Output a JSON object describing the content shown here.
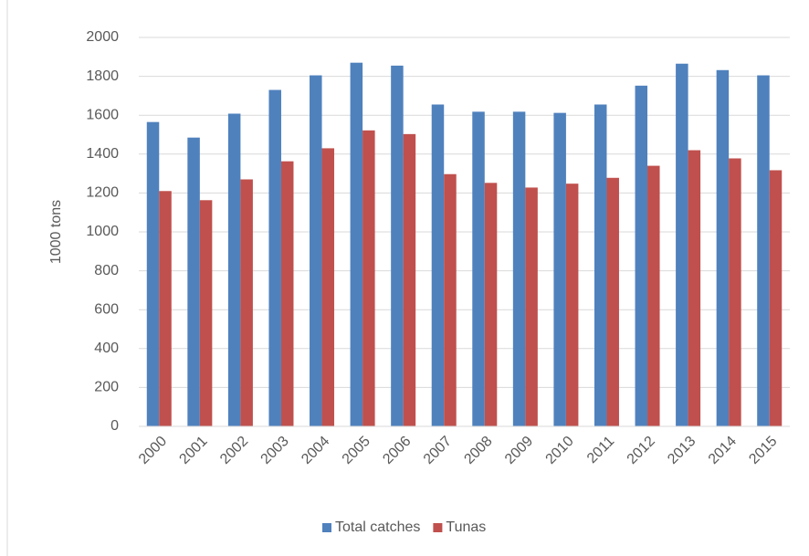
{
  "chart_data": {
    "type": "bar",
    "y_label": "1000 tons",
    "categories": [
      "2000",
      "2001",
      "2002",
      "2003",
      "2004",
      "2005",
      "2006",
      "2007",
      "2008",
      "2009",
      "2010",
      "2011",
      "2012",
      "2013",
      "2014",
      "2015"
    ],
    "series": [
      {
        "name": "Total catches",
        "color": "#4f81bd",
        "values": [
          1565,
          1485,
          1608,
          1730,
          1805,
          1870,
          1855,
          1655,
          1618,
          1618,
          1612,
          1655,
          1752,
          1865,
          1832,
          1805
        ]
      },
      {
        "name": "Tunas",
        "color": "#c0504d",
        "values": [
          1210,
          1163,
          1270,
          1363,
          1430,
          1522,
          1503,
          1297,
          1252,
          1228,
          1248,
          1278,
          1340,
          1420,
          1378,
          1317
        ]
      }
    ],
    "ylim": [
      0,
      2000
    ],
    "yticks": [
      0,
      200,
      400,
      600,
      800,
      1000,
      1200,
      1400,
      1600,
      1800,
      2000
    ],
    "grid": true,
    "legend": "bottom"
  }
}
